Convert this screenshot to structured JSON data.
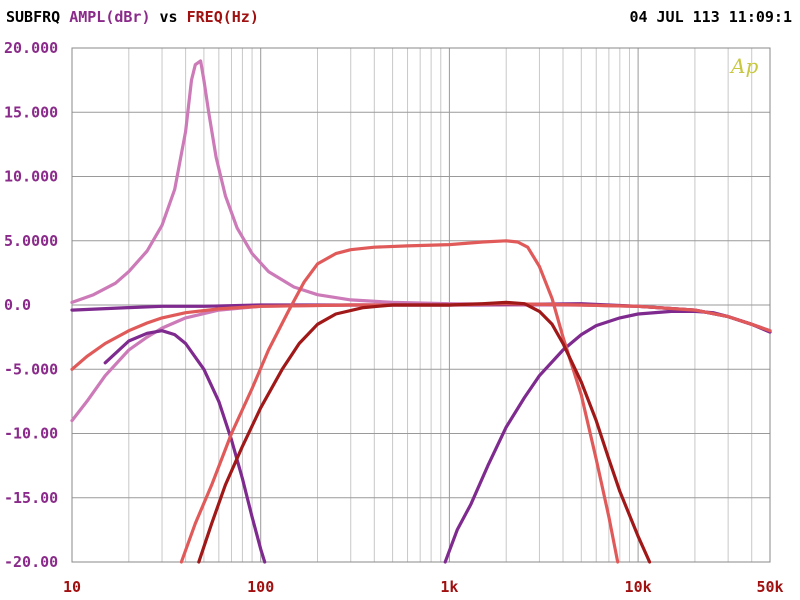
{
  "header": {
    "name": "SUBFRQ",
    "y_quantity": "AMPL(dBr)",
    "vs": "vs",
    "x_quantity": "FREQ(Hz)",
    "timestamp": "04 JUL 113 11:09:1"
  },
  "logo": "Ap",
  "colors": {
    "axis_text": "#7a1e7a",
    "grid_major": "#9a9a9a",
    "grid_minor": "#c8c8c8",
    "tick_text_y": "#8a2a8a",
    "tick_text_x": "#a01010",
    "logo": "#c8c840"
  },
  "chart_data": {
    "type": "line",
    "xscale": "log",
    "xlim": [
      10,
      50000
    ],
    "ylim": [
      -20,
      20
    ],
    "grid": true,
    "y_ticks": [
      {
        "value": 20,
        "label": "20.000"
      },
      {
        "value": 15,
        "label": "15.000"
      },
      {
        "value": 10,
        "label": "10.000"
      },
      {
        "value": 5,
        "label": "5.0000"
      },
      {
        "value": 0,
        "label": "0.0"
      },
      {
        "value": -5,
        "label": "-5.000"
      },
      {
        "value": -10,
        "label": "-10.00"
      },
      {
        "value": -15,
        "label": "-15.00"
      },
      {
        "value": -20,
        "label": "-20.00"
      }
    ],
    "x_ticks": [
      {
        "value": 10,
        "label": "10"
      },
      {
        "value": 100,
        "label": "100"
      },
      {
        "value": 1000,
        "label": "1k"
      },
      {
        "value": 10000,
        "label": "10k"
      },
      {
        "value": 50000,
        "label": "50k"
      }
    ],
    "series": [
      {
        "color": "#cc7ab8",
        "points": [
          [
            10,
            -9.0
          ],
          [
            12,
            -7.5
          ],
          [
            15,
            -5.5
          ],
          [
            20,
            -3.5
          ],
          [
            25,
            -2.5
          ],
          [
            30,
            -1.8
          ],
          [
            40,
            -1.0
          ],
          [
            60,
            -0.4
          ],
          [
            100,
            -0.1
          ],
          [
            300,
            0
          ],
          [
            1000,
            0
          ],
          [
            5000,
            0
          ],
          [
            10000,
            -0.1
          ],
          [
            20000,
            -0.4
          ],
          [
            30000,
            -0.9
          ],
          [
            40000,
            -1.5
          ],
          [
            50000,
            -2.0
          ]
        ]
      },
      {
        "color": "#cc7ab8",
        "points": [
          [
            10,
            0.2
          ],
          [
            13,
            0.8
          ],
          [
            17,
            1.7
          ],
          [
            20,
            2.6
          ],
          [
            25,
            4.2
          ],
          [
            30,
            6.2
          ],
          [
            35,
            9.0
          ],
          [
            40,
            13.5
          ],
          [
            43,
            17.5
          ],
          [
            45,
            18.7
          ],
          [
            48,
            19.0
          ],
          [
            50,
            17.5
          ],
          [
            53,
            15.0
          ],
          [
            58,
            11.5
          ],
          [
            65,
            8.5
          ],
          [
            75,
            6.0
          ],
          [
            90,
            4.0
          ],
          [
            110,
            2.6
          ],
          [
            150,
            1.4
          ],
          [
            200,
            0.8
          ],
          [
            300,
            0.4
          ],
          [
            500,
            0.2
          ],
          [
            1000,
            0.1
          ],
          [
            5000,
            0
          ],
          [
            10000,
            -0.1
          ],
          [
            20000,
            -0.4
          ],
          [
            30000,
            -0.9
          ],
          [
            40000,
            -1.5
          ],
          [
            50000,
            -2.0
          ]
        ]
      },
      {
        "color": "#7e2a8e",
        "points": [
          [
            10,
            -0.4
          ],
          [
            20,
            -0.2
          ],
          [
            30,
            -0.1
          ],
          [
            50,
            -0.1
          ],
          [
            100,
            0
          ],
          [
            1000,
            0
          ],
          [
            5000,
            0.1
          ],
          [
            10000,
            -0.1
          ],
          [
            20000,
            -0.4
          ],
          [
            30000,
            -0.9
          ],
          [
            40000,
            -1.5
          ],
          [
            50000,
            -2.1
          ]
        ]
      },
      {
        "color": "#7e2a8e",
        "points": [
          [
            15,
            -4.5
          ],
          [
            20,
            -2.8
          ],
          [
            25,
            -2.2
          ],
          [
            30,
            -2.0
          ],
          [
            35,
            -2.3
          ],
          [
            40,
            -3.0
          ],
          [
            50,
            -5.0
          ],
          [
            60,
            -7.5
          ],
          [
            70,
            -10.5
          ],
          [
            80,
            -13.5
          ],
          [
            90,
            -16.5
          ],
          [
            100,
            -19.0
          ],
          [
            105,
            -20.0
          ]
        ]
      },
      {
        "color": "#7e2a8e",
        "points": [
          [
            950,
            -20
          ],
          [
            1100,
            -17.5
          ],
          [
            1300,
            -15.5
          ],
          [
            1600,
            -12.5
          ],
          [
            2000,
            -9.5
          ],
          [
            2500,
            -7.2
          ],
          [
            3000,
            -5.5
          ],
          [
            4000,
            -3.5
          ],
          [
            5000,
            -2.3
          ],
          [
            6000,
            -1.6
          ],
          [
            8000,
            -1.0
          ],
          [
            10000,
            -0.7
          ],
          [
            15000,
            -0.5
          ],
          [
            20000,
            -0.5
          ],
          [
            25000,
            -0.6
          ],
          [
            30000,
            -0.9
          ],
          [
            40000,
            -1.5
          ],
          [
            50000,
            -2.1
          ]
        ]
      },
      {
        "color": "#e05a5a",
        "points": [
          [
            10,
            -5.0
          ],
          [
            12,
            -4.0
          ],
          [
            15,
            -3.0
          ],
          [
            20,
            -2.0
          ],
          [
            25,
            -1.4
          ],
          [
            30,
            -1.0
          ],
          [
            40,
            -0.6
          ],
          [
            60,
            -0.3
          ],
          [
            100,
            -0.1
          ],
          [
            300,
            0
          ],
          [
            1000,
            0
          ],
          [
            2000,
            0.1
          ],
          [
            5000,
            0
          ],
          [
            10000,
            -0.1
          ],
          [
            20000,
            -0.4
          ],
          [
            30000,
            -0.9
          ],
          [
            40000,
            -1.5
          ],
          [
            50000,
            -2.0
          ]
        ]
      },
      {
        "color": "#e05a5a",
        "points": [
          [
            38,
            -20
          ],
          [
            45,
            -17
          ],
          [
            55,
            -14
          ],
          [
            70,
            -10
          ],
          [
            90,
            -6.5
          ],
          [
            110,
            -3.5
          ],
          [
            140,
            -0.5
          ],
          [
            170,
            1.8
          ],
          [
            200,
            3.2
          ],
          [
            250,
            4.0
          ],
          [
            300,
            4.3
          ],
          [
            400,
            4.5
          ],
          [
            600,
            4.6
          ],
          [
            1000,
            4.7
          ],
          [
            1500,
            4.9
          ],
          [
            2000,
            5.0
          ],
          [
            2300,
            4.9
          ],
          [
            2600,
            4.5
          ],
          [
            3000,
            3.0
          ],
          [
            3500,
            0.5
          ],
          [
            4000,
            -2.5
          ],
          [
            5000,
            -7.0
          ],
          [
            6000,
            -12.0
          ],
          [
            7000,
            -16.5
          ],
          [
            7800,
            -20
          ]
        ]
      },
      {
        "color": "#a01818",
        "points": [
          [
            47,
            -20
          ],
          [
            55,
            -17.0
          ],
          [
            65,
            -14.0
          ],
          [
            80,
            -11.0
          ],
          [
            100,
            -8.0
          ],
          [
            130,
            -5.0
          ],
          [
            160,
            -3.0
          ],
          [
            200,
            -1.5
          ],
          [
            250,
            -0.7
          ],
          [
            350,
            -0.2
          ],
          [
            500,
            0
          ],
          [
            1000,
            0
          ],
          [
            1500,
            0.1
          ],
          [
            2000,
            0.2
          ],
          [
            2500,
            0.1
          ],
          [
            3000,
            -0.5
          ],
          [
            3500,
            -1.5
          ],
          [
            4000,
            -3.0
          ],
          [
            5000,
            -6.0
          ],
          [
            6000,
            -9.0
          ],
          [
            7000,
            -12.0
          ],
          [
            8000,
            -14.5
          ],
          [
            10000,
            -18.0
          ],
          [
            11500,
            -20
          ]
        ]
      }
    ]
  }
}
